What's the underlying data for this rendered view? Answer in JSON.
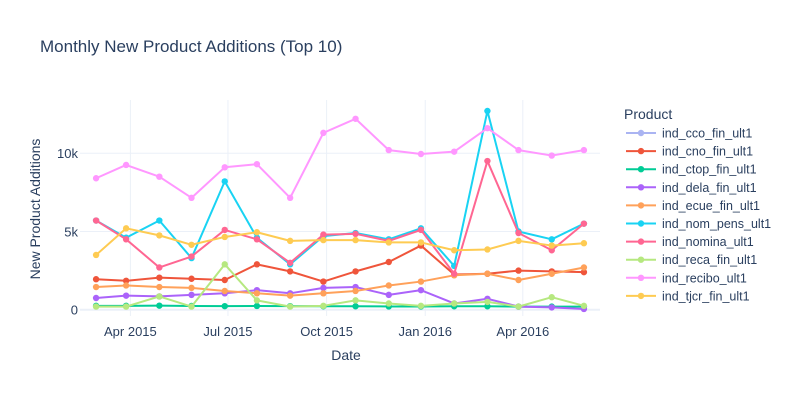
{
  "chart_data": {
    "type": "line",
    "title": "Monthly New Product Additions (Top 10)",
    "xlabel": "Date",
    "ylabel": "New Product Additions",
    "legend_title": "Product",
    "legend_position": "right",
    "grid": true,
    "x": [
      "2015-02-28",
      "2015-03-28",
      "2015-04-28",
      "2015-05-28",
      "2015-06-28",
      "2015-07-28",
      "2015-08-28",
      "2015-09-28",
      "2015-10-28",
      "2015-11-28",
      "2015-12-28",
      "2016-01-28",
      "2016-02-28",
      "2016-03-28",
      "2016-04-28",
      "2016-05-28"
    ],
    "x_ticks": [
      {
        "date": "2015-04-01",
        "label": "Apr 2015"
      },
      {
        "date": "2015-07-01",
        "label": "Jul 2015"
      },
      {
        "date": "2015-10-01",
        "label": "Oct 2015"
      },
      {
        "date": "2016-01-01",
        "label": "Jan 2016"
      },
      {
        "date": "2016-04-01",
        "label": "Apr 2016"
      }
    ],
    "xlim": [
      "2015-02-13",
      "2016-06-12"
    ],
    "ylim": [
      -400,
      13400
    ],
    "y_ticks": [
      {
        "value": 0,
        "label": "0"
      },
      {
        "value": 5000,
        "label": "5k"
      },
      {
        "value": 10000,
        "label": "10k"
      }
    ],
    "series": [
      {
        "name": "ind_cco_fin_ult1",
        "color": "#aab4f2",
        "values": [
          null,
          null,
          null,
          null,
          null,
          null,
          null,
          null,
          null,
          null,
          null,
          null,
          null,
          null,
          null,
          null
        ]
      },
      {
        "name": "ind_cno_fin_ult1",
        "color": "#EF553B",
        "values": [
          1950,
          1850,
          2050,
          1980,
          1900,
          2900,
          2450,
          1800,
          2450,
          3050,
          4100,
          2250,
          2300,
          2500,
          2450,
          2400
        ]
      },
      {
        "name": "ind_ctop_fin_ult1",
        "color": "#00CC96",
        "values": [
          250,
          250,
          260,
          240,
          230,
          240,
          230,
          220,
          220,
          210,
          210,
          220,
          220,
          200,
          200,
          200
        ]
      },
      {
        "name": "ind_dela_fin_ult1",
        "color": "#AB63FA",
        "values": [
          750,
          900,
          850,
          950,
          1050,
          1250,
          1050,
          1400,
          1450,
          950,
          1250,
          400,
          700,
          200,
          150,
          50
        ]
      },
      {
        "name": "ind_ecue_fin_ult1",
        "color": "#FFA15A",
        "values": [
          1450,
          1550,
          1450,
          1400,
          1200,
          1050,
          900,
          1050,
          1200,
          1550,
          1800,
          2200,
          2300,
          1900,
          2300,
          2700
        ]
      },
      {
        "name": "ind_nom_pens_ult1",
        "color": "#19D3F3",
        "values": [
          5700,
          4600,
          5700,
          3300,
          8200,
          4600,
          2900,
          4700,
          4900,
          4500,
          5200,
          2800,
          12700,
          5000,
          4500,
          5500
        ]
      },
      {
        "name": "ind_nomina_ult1",
        "color": "#FF6692",
        "values": [
          5700,
          4500,
          2700,
          3400,
          5100,
          4500,
          3000,
          4800,
          4850,
          4400,
          5100,
          2300,
          9500,
          4900,
          3800,
          5500
        ]
      },
      {
        "name": "ind_reca_fin_ult1",
        "color": "#B6E880",
        "values": [
          200,
          200,
          850,
          200,
          2900,
          600,
          200,
          250,
          600,
          400,
          250,
          400,
          500,
          200,
          800,
          250
        ]
      },
      {
        "name": "ind_recibo_ult1",
        "color": "#FF97FF",
        "values": [
          8400,
          9250,
          8500,
          7150,
          9100,
          9300,
          7150,
          11300,
          12200,
          10200,
          9950,
          10100,
          11600,
          10200,
          9850,
          10200
        ]
      },
      {
        "name": "ind_tjcr_fin_ult1",
        "color": "#FECB52",
        "values": [
          3500,
          5200,
          4750,
          4150,
          4650,
          4950,
          4400,
          4450,
          4450,
          4300,
          4300,
          3800,
          3850,
          4400,
          4100,
          4250
        ]
      }
    ]
  }
}
